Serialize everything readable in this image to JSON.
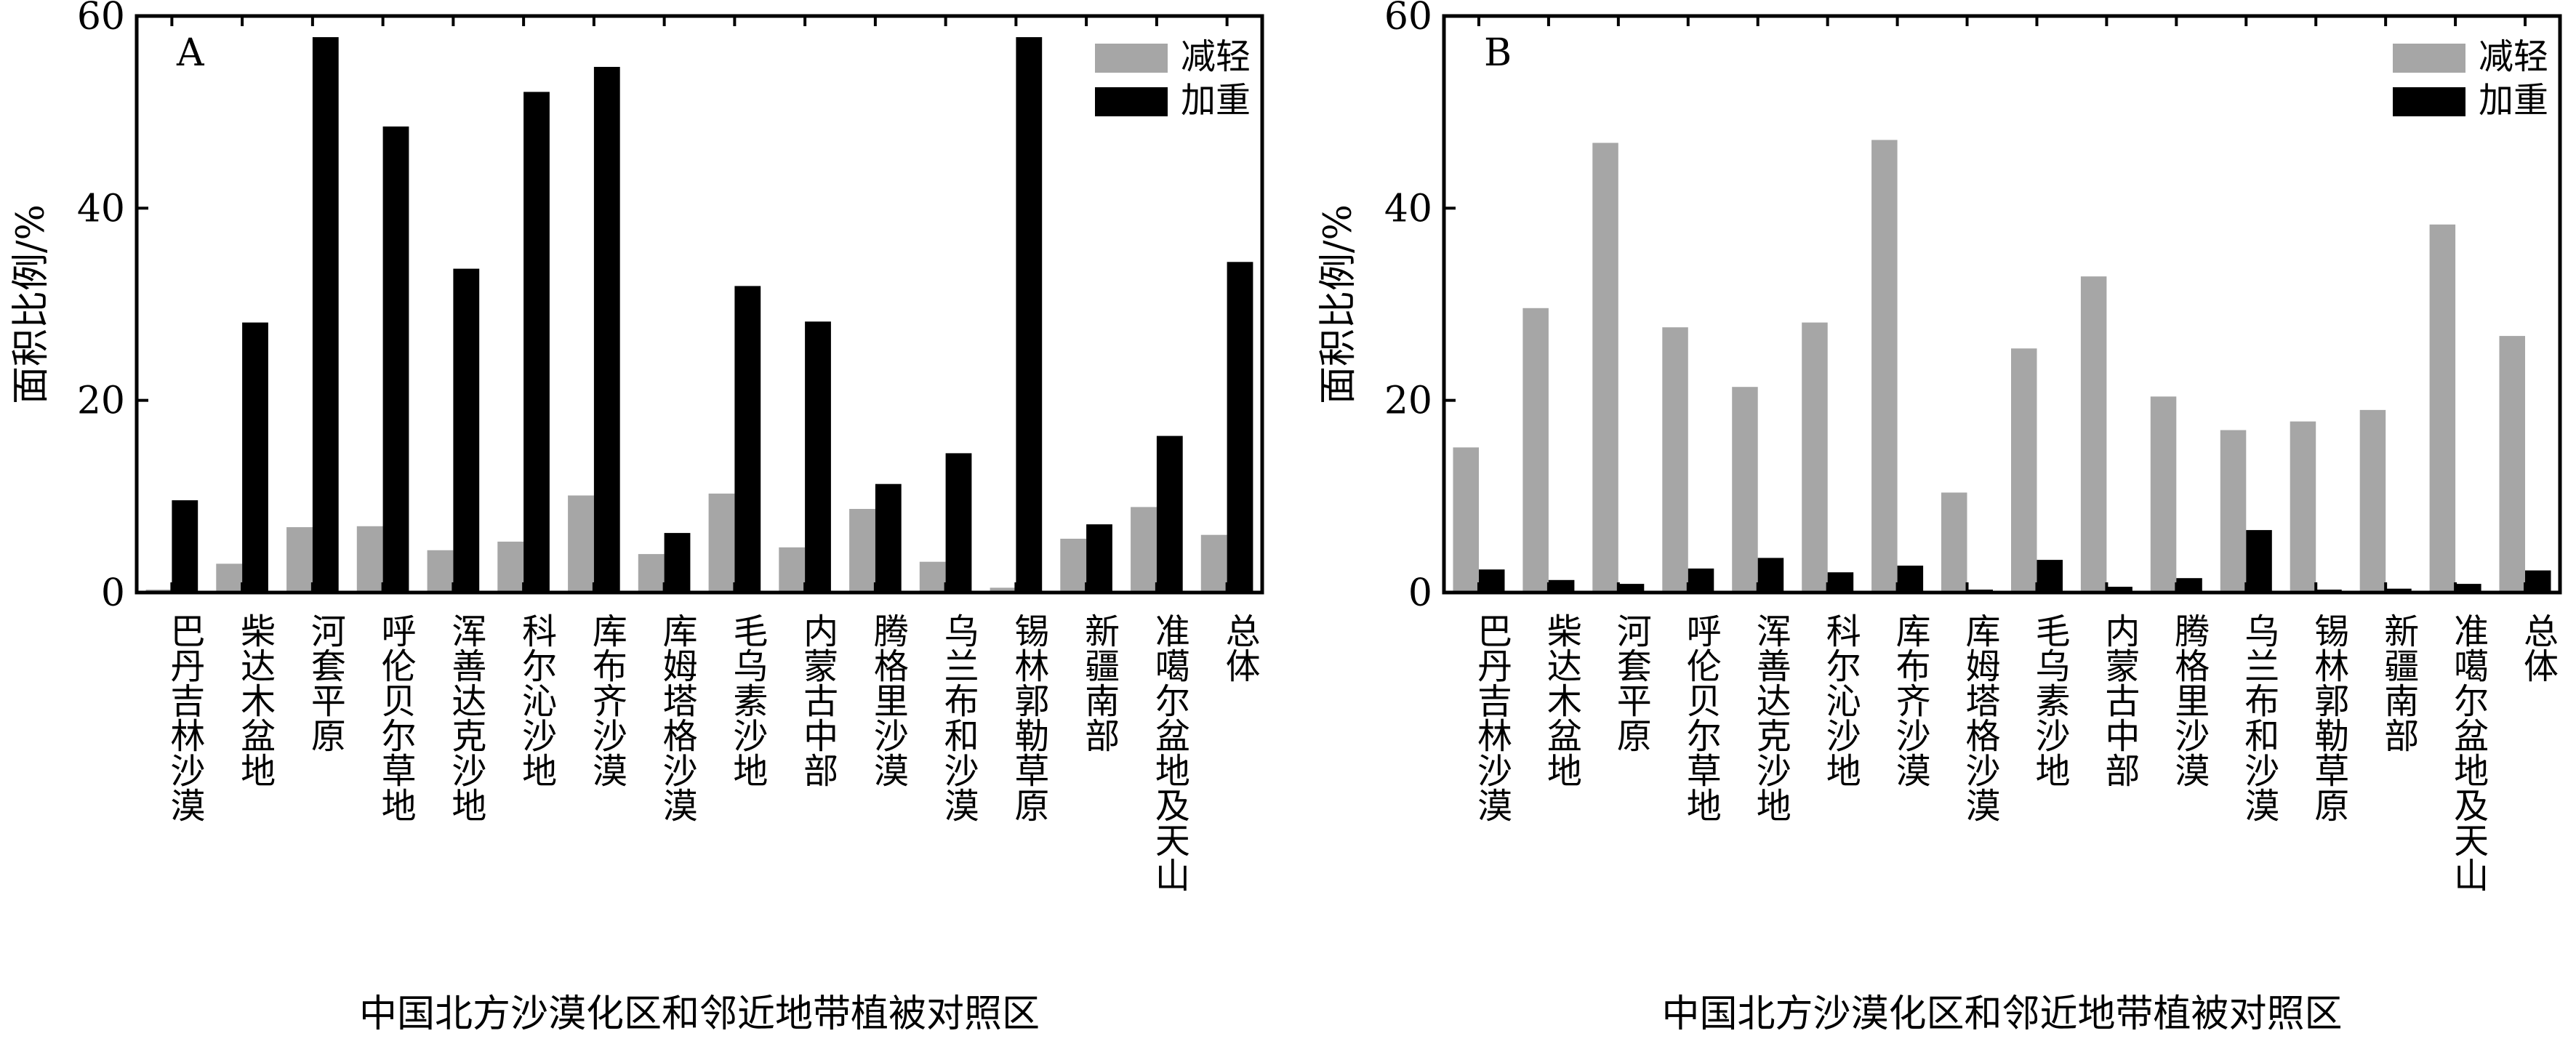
{
  "chart_data": [
    {
      "panel_label": "A",
      "type": "bar",
      "xlabel": "中国北方沙漠化区和邻近地带植被对照区",
      "ylabel": "面积比例/%",
      "ylim": [
        0,
        60
      ],
      "yticks": [
        0,
        20,
        40,
        60
      ],
      "legend_position": "top-right",
      "categories": [
        "巴丹吉林沙漠",
        "柴达木盆地",
        "河套平原",
        "呼伦贝尔草地",
        "浑善达克沙地",
        "科尔沁沙地",
        "库布齐沙漠",
        "库姆塔格沙漠",
        "毛乌素沙地",
        "内蒙古中部",
        "腾格里沙漠",
        "乌兰布和沙漠",
        "锡林郭勒草原",
        "新疆南部",
        "准噶尔盆地及天山",
        "总体"
      ],
      "series": [
        {
          "name": "减轻",
          "color": "#a6a6a6",
          "values": [
            0.3,
            3.0,
            6.8,
            6.9,
            4.4,
            5.3,
            10.1,
            4.0,
            10.3,
            4.7,
            8.7,
            3.2,
            0.5,
            5.6,
            8.9,
            6.0
          ]
        },
        {
          "name": "加重",
          "color": "#000000",
          "values": [
            9.6,
            28.1,
            57.8,
            48.5,
            33.7,
            52.1,
            54.7,
            6.2,
            31.9,
            28.2,
            11.3,
            14.5,
            57.8,
            7.1,
            16.3,
            34.4
          ]
        }
      ]
    },
    {
      "panel_label": "B",
      "type": "bar",
      "xlabel": "中国北方沙漠化区和邻近地带植被对照区",
      "ylabel": "面积比例/%",
      "ylim": [
        0,
        60
      ],
      "yticks": [
        0,
        20,
        40,
        60
      ],
      "legend_position": "top-right",
      "categories": [
        "巴丹吉林沙漠",
        "柴达木盆地",
        "河套平原",
        "呼伦贝尔草地",
        "浑善达克沙地",
        "科尔沁沙地",
        "库布齐沙漠",
        "库姆塔格沙漠",
        "毛乌素沙地",
        "内蒙古中部",
        "腾格里沙漠",
        "乌兰布和沙漠",
        "锡林郭勒草原",
        "新疆南部",
        "准噶尔盆地及天山",
        "总体"
      ],
      "series": [
        {
          "name": "减轻",
          "color": "#a6a6a6",
          "values": [
            15.1,
            29.6,
            46.8,
            27.6,
            21.4,
            28.1,
            47.1,
            10.4,
            25.4,
            32.9,
            20.4,
            16.9,
            17.8,
            19.0,
            38.3,
            26.7
          ]
        },
        {
          "name": "加重",
          "color": "#000000",
          "values": [
            2.4,
            1.3,
            0.9,
            2.5,
            3.6,
            2.1,
            2.8,
            0.3,
            3.4,
            0.6,
            1.5,
            6.5,
            0.3,
            0.4,
            0.9,
            2.3
          ]
        }
      ]
    }
  ]
}
